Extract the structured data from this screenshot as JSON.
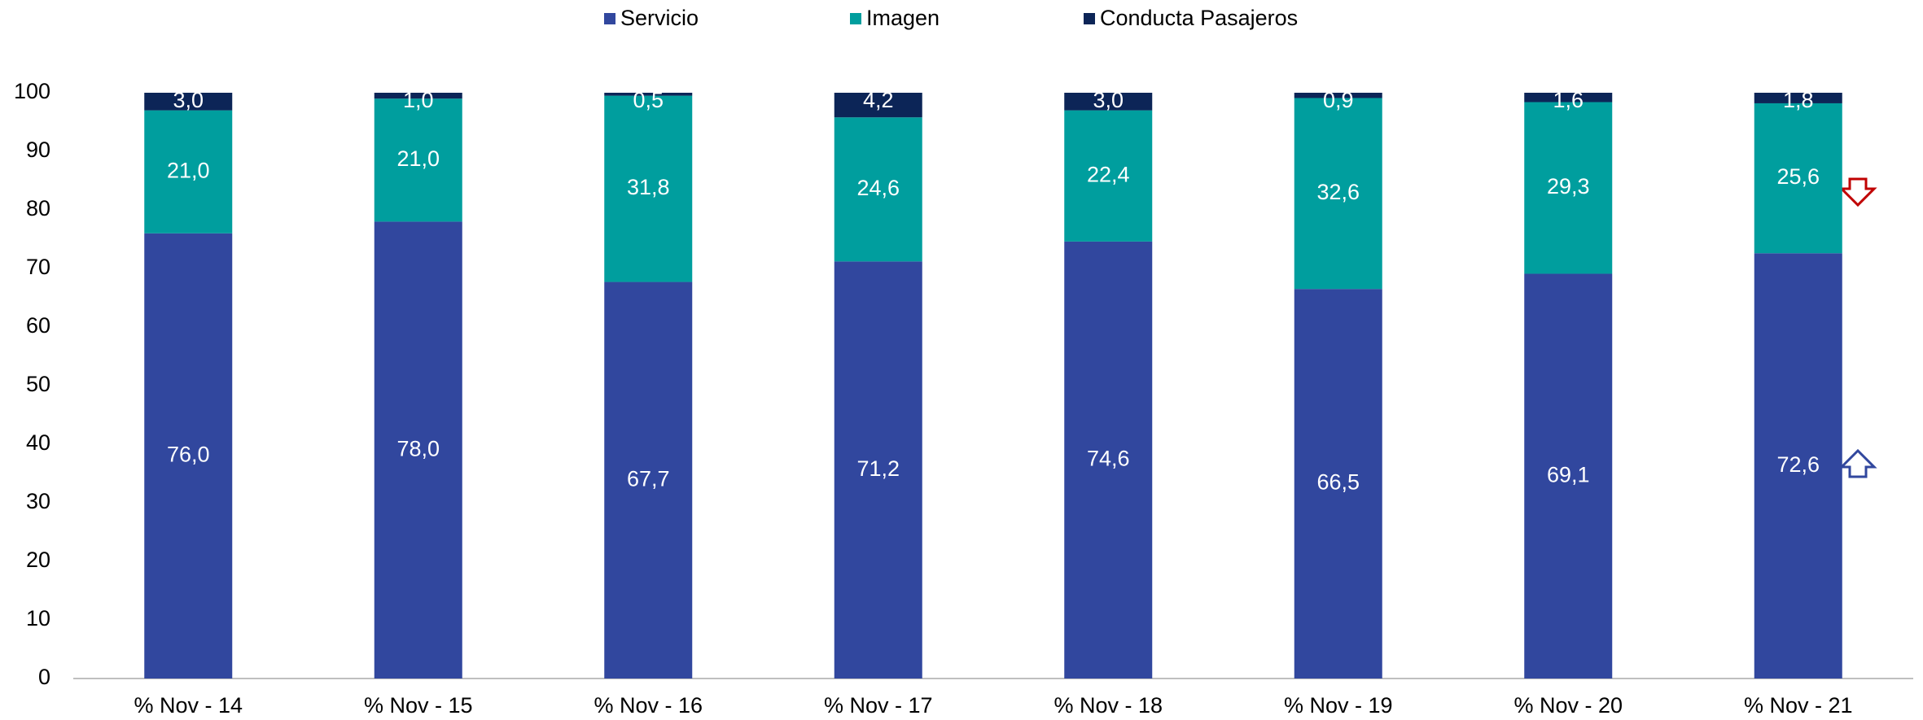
{
  "chart_data": {
    "type": "stacked_bar",
    "categories": [
      "% Nov - 14",
      "% Nov - 15",
      "% Nov - 16",
      "% Nov - 17",
      "% Nov - 18",
      "% Nov - 19",
      "% Nov - 20",
      "% Nov - 21"
    ],
    "series": [
      {
        "name": "Servicio",
        "color": "#31479e",
        "values": [
          76.0,
          78.0,
          67.7,
          71.2,
          74.6,
          66.5,
          69.1,
          72.6
        ],
        "value_labels": [
          "76,0",
          "78,0",
          "67,7",
          "71,2",
          "74,6",
          "66,5",
          "69,1",
          "72,6"
        ]
      },
      {
        "name": "Imagen",
        "color": "#009e9e",
        "values": [
          21.0,
          21.0,
          31.8,
          24.6,
          22.4,
          32.6,
          29.3,
          25.6
        ],
        "value_labels": [
          "21,0",
          "21,0",
          "31,8",
          "24,6",
          "22,4",
          "32,6",
          "29,3",
          "25,6"
        ]
      },
      {
        "name": "Conducta Pasajeros",
        "color": "#0c2557",
        "values": [
          3.0,
          1.0,
          0.5,
          4.2,
          3.0,
          0.9,
          1.6,
          1.8
        ],
        "value_labels": [
          "3,0",
          "1,0",
          "0,5",
          "4,2",
          "3,0",
          "0,9",
          "1,6",
          "1,8"
        ]
      }
    ],
    "ylim": [
      0,
      100
    ],
    "yticks": [
      0,
      10,
      20,
      30,
      40,
      50,
      60,
      70,
      80,
      90,
      100
    ],
    "grid": false,
    "legend": "top"
  }
}
